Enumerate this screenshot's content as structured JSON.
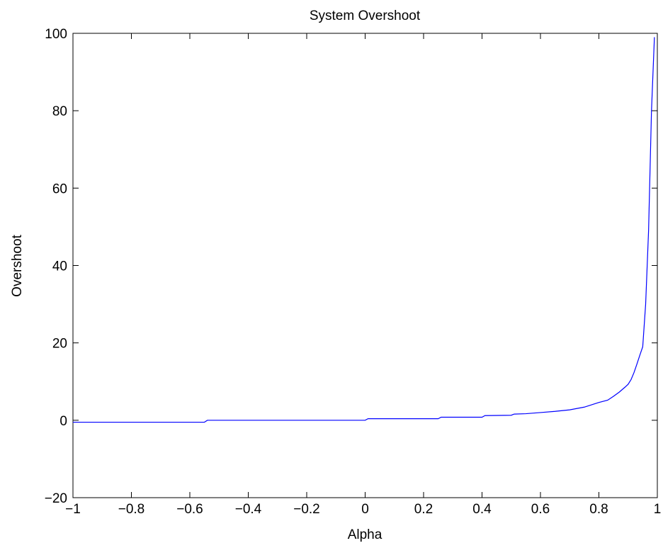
{
  "chart_data": {
    "type": "line",
    "title": "System Overshoot",
    "x_label": "Alpha",
    "y_label": "Overshoot",
    "x": [
      -1,
      -0.55,
      -0.54,
      0,
      0.01,
      0.25,
      0.26,
      0.4,
      0.41,
      0.5,
      0.51,
      0.55,
      0.6,
      0.65,
      0.7,
      0.75,
      0.8,
      0.83,
      0.85,
      0.87,
      0.89,
      0.9,
      0.91,
      0.92,
      0.93,
      0.94,
      0.95,
      0.96,
      0.97,
      0.98,
      0.99
    ],
    "series": [
      {
        "color": "#0000ff",
        "values": [
          -0.5,
          -0.5,
          0,
          0,
          0.4,
          0.4,
          0.8,
          0.8,
          1.2,
          1.3,
          1.6,
          1.7,
          2.0,
          2.3,
          2.7,
          3.4,
          4.6,
          5.2,
          6.2,
          7.3,
          8.6,
          9.3,
          10.5,
          12.3,
          14.5,
          16.8,
          19,
          30,
          49,
          80,
          99
        ]
      }
    ],
    "xlim": [
      -1,
      1
    ],
    "ylim": [
      -20,
      100
    ],
    "xticks": [
      {
        "value": -1,
        "label": "−1"
      },
      {
        "value": -0.8,
        "label": "−0.8"
      },
      {
        "value": -0.6,
        "label": "−0.6"
      },
      {
        "value": -0.4,
        "label": "−0.4"
      },
      {
        "value": -0.2,
        "label": "−0.2"
      },
      0,
      0.2,
      0.4,
      0.6,
      0.8,
      1
    ],
    "yticks": [
      {
        "value": -20,
        "label": "−20"
      },
      0,
      20,
      40,
      60,
      80,
      100
    ],
    "grid": false
  }
}
